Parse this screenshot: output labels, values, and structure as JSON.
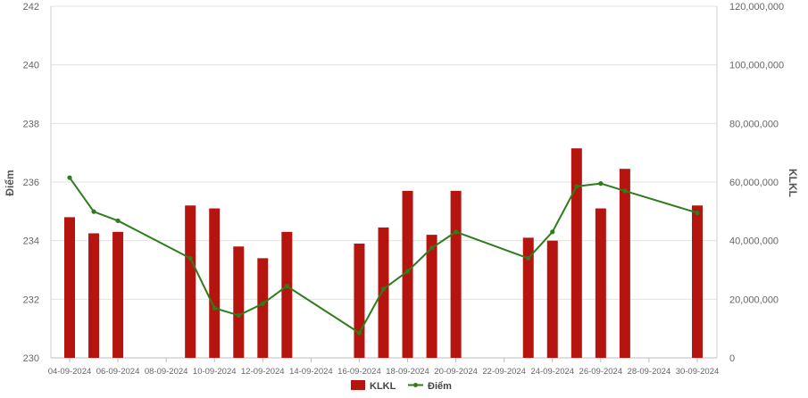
{
  "chart_data": {
    "type": "bar+line",
    "x_tick_labels": [
      "04-09-2024",
      "06-09-2024",
      "08-09-2024",
      "10-09-2024",
      "12-09-2024",
      "14-09-2024",
      "16-09-2024",
      "18-09-2024",
      "20-09-2024",
      "22-09-2024",
      "24-09-2024",
      "26-09-2024",
      "28-09-2024",
      "30-09-2024"
    ],
    "xlim": [
      "2024-09-04",
      "2024-09-30"
    ],
    "y_left": {
      "label": "Điểm",
      "ticks": [
        "230",
        "232",
        "234",
        "236",
        "238",
        "240",
        "242"
      ],
      "ylim": [
        230,
        242
      ]
    },
    "y_right": {
      "label": "KLKL",
      "ticks": [
        "0",
        "20,000,000",
        "40,000,000",
        "60,000,000",
        "80,000,000",
        "100,000,000",
        "120,000,000"
      ],
      "ylim": [
        0,
        120000000
      ]
    },
    "grid": true,
    "legend_position": "bottom",
    "series": [
      {
        "name": "KLKL",
        "kind": "bar",
        "axis": "right",
        "color": "#b5140f",
        "points": [
          {
            "date": "2024-09-04",
            "value": 48000000
          },
          {
            "date": "2024-09-05",
            "value": 42500000
          },
          {
            "date": "2024-09-06",
            "value": 43000000
          },
          {
            "date": "2024-09-09",
            "value": 52000000
          },
          {
            "date": "2024-09-10",
            "value": 51000000
          },
          {
            "date": "2024-09-11",
            "value": 38000000
          },
          {
            "date": "2024-09-12",
            "value": 34000000
          },
          {
            "date": "2024-09-13",
            "value": 43000000
          },
          {
            "date": "2024-09-16",
            "value": 39000000
          },
          {
            "date": "2024-09-17",
            "value": 44500000
          },
          {
            "date": "2024-09-18",
            "value": 57000000
          },
          {
            "date": "2024-09-19",
            "value": 42000000
          },
          {
            "date": "2024-09-20",
            "value": 57000000
          },
          {
            "date": "2024-09-23",
            "value": 41000000
          },
          {
            "date": "2024-09-24",
            "value": 40000000
          },
          {
            "date": "2024-09-25",
            "value": 71500000
          },
          {
            "date": "2024-09-26",
            "value": 51000000
          },
          {
            "date": "2024-09-27",
            "value": 64500000
          },
          {
            "date": "2024-09-30",
            "value": 52000000
          }
        ]
      },
      {
        "name": "Điểm",
        "kind": "line",
        "axis": "left",
        "color": "#2e7d1b",
        "points": [
          {
            "date": "2024-09-04",
            "value": 236.15
          },
          {
            "date": "2024-09-05",
            "value": 234.99
          },
          {
            "date": "2024-09-06",
            "value": 234.68
          },
          {
            "date": "2024-09-09",
            "value": 233.4
          },
          {
            "date": "2024-09-10",
            "value": 231.7
          },
          {
            "date": "2024-09-11",
            "value": 231.45
          },
          {
            "date": "2024-09-12",
            "value": 231.85
          },
          {
            "date": "2024-09-13",
            "value": 232.45
          },
          {
            "date": "2024-09-16",
            "value": 230.85
          },
          {
            "date": "2024-09-17",
            "value": 232.35
          },
          {
            "date": "2024-09-18",
            "value": 232.95
          },
          {
            "date": "2024-09-19",
            "value": 233.75
          },
          {
            "date": "2024-09-20",
            "value": 234.3
          },
          {
            "date": "2024-09-23",
            "value": 233.4
          },
          {
            "date": "2024-09-24",
            "value": 234.3
          },
          {
            "date": "2024-09-25",
            "value": 235.85
          },
          {
            "date": "2024-09-26",
            "value": 235.95
          },
          {
            "date": "2024-09-27",
            "value": 235.7
          },
          {
            "date": "2024-09-30",
            "value": 234.95
          }
        ]
      }
    ]
  }
}
